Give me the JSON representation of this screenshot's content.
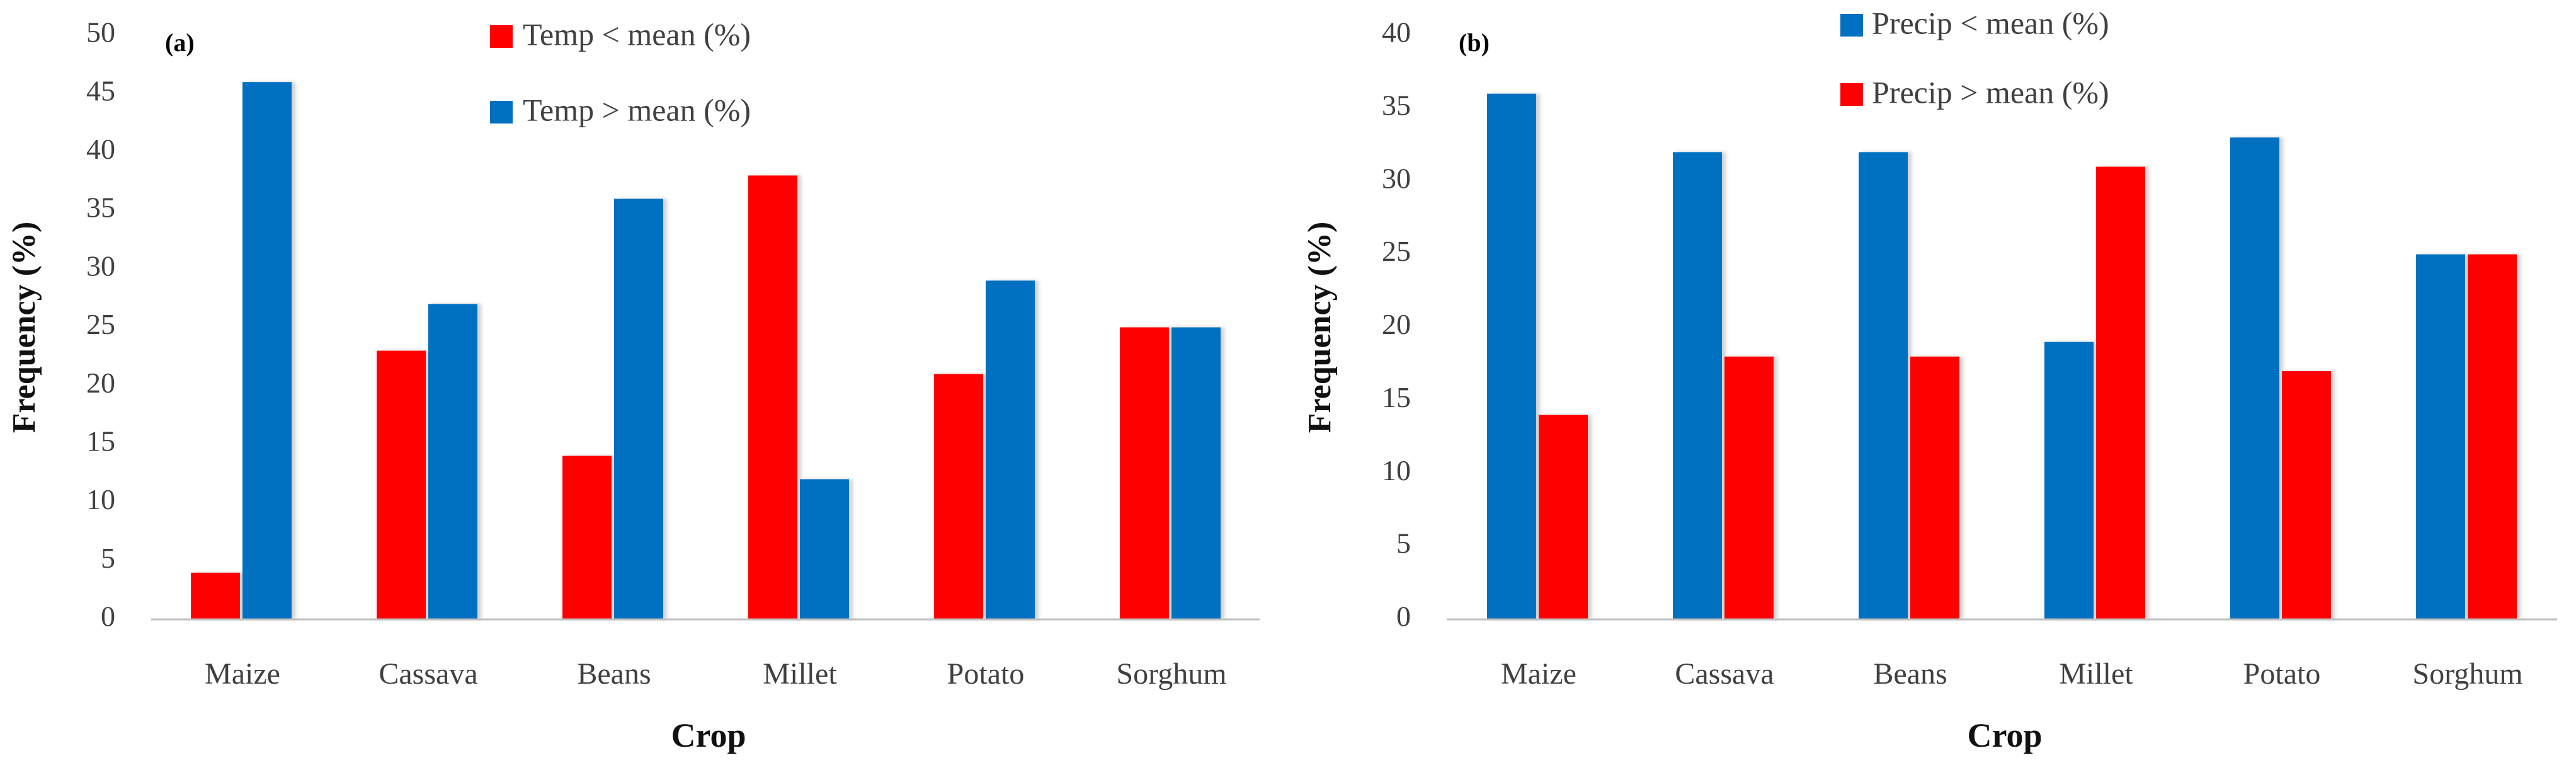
{
  "chart_data": [
    {
      "type": "bar",
      "panel": "(a)",
      "title": "",
      "categories": [
        "Maize",
        "Cassava",
        "Beans",
        "Millet",
        "Potato",
        "Sorghum"
      ],
      "series": [
        {
          "name": "Temp < mean (%)",
          "color": "#ff0000",
          "values": [
            4,
            23,
            14,
            38,
            21,
            25
          ]
        },
        {
          "name": "Temp > mean (%)",
          "color": "#0070c0",
          "values": [
            46,
            27,
            36,
            12,
            29,
            25
          ]
        }
      ],
      "xlabel": "Crop",
      "ylabel": "Frequency (%)",
      "ylim": [
        0,
        50
      ],
      "yticks": [
        "0",
        "5",
        "10",
        "15",
        "20",
        "25",
        "30",
        "35",
        "40",
        "45",
        "50"
      ],
      "grid": false,
      "legend_position": "top-center"
    },
    {
      "type": "bar",
      "panel": "(b)",
      "title": "",
      "categories": [
        "Maize",
        "Cassava",
        "Beans",
        "Millet",
        "Potato",
        "Sorghum"
      ],
      "series": [
        {
          "name": "Precip < mean (%)",
          "color": "#0070c0",
          "values": [
            36,
            32,
            32,
            19,
            33,
            25
          ]
        },
        {
          "name": "Precip > mean (%)",
          "color": "#ff0000",
          "values": [
            14,
            18,
            18,
            31,
            17,
            25
          ]
        }
      ],
      "xlabel": "Crop",
      "ylabel": "Frequency (%)",
      "ylim": [
        0,
        40
      ],
      "yticks": [
        "0",
        "5",
        "10",
        "15",
        "20",
        "25",
        "30",
        "35",
        "40"
      ],
      "grid": false,
      "legend_position": "top-center"
    }
  ]
}
